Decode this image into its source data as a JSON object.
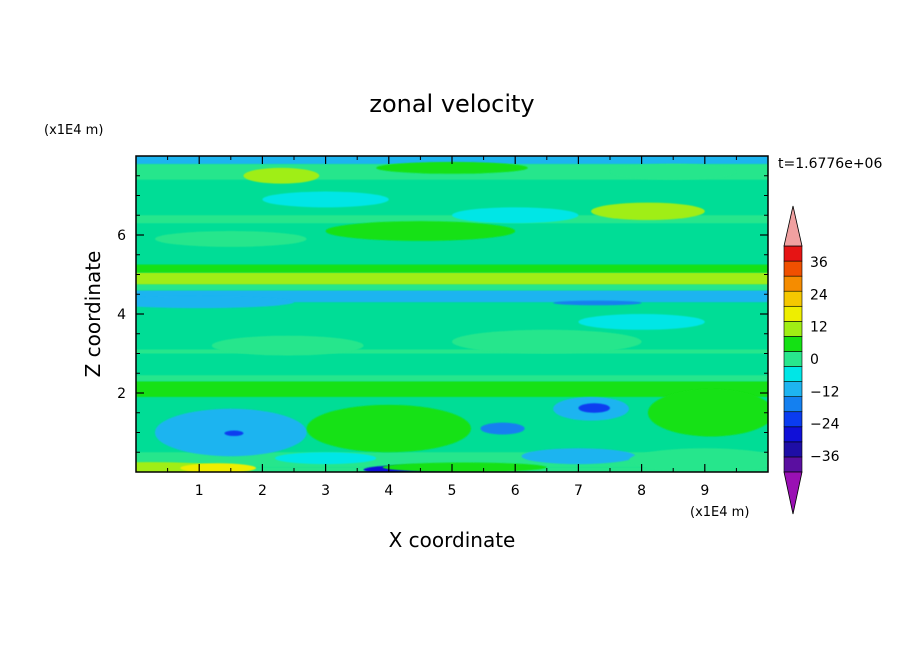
{
  "chart_data": {
    "type": "heatmap",
    "title": "zonal velocity",
    "xlabel": "X coordinate",
    "ylabel": "Z coordinate",
    "x_unit": "(x1E4 m)",
    "y_unit": "(x1E4 m)",
    "time_label": "t=1.6776e+06",
    "xlim": [
      0,
      10
    ],
    "ylim": [
      0,
      8
    ],
    "x_ticks": [
      1,
      2,
      3,
      4,
      5,
      6,
      7,
      8,
      9
    ],
    "x_tick_labels": [
      "1",
      "2",
      "3",
      "4",
      "5",
      "6",
      "7",
      "8",
      "9"
    ],
    "y_ticks": [
      2,
      4,
      6
    ],
    "y_tick_labels": [
      "2",
      "4",
      "6"
    ],
    "colorbar": {
      "levels": [
        -42,
        -36,
        -30,
        -24,
        -18,
        -12,
        -6,
        0,
        6,
        12,
        18,
        24,
        30,
        36,
        42
      ],
      "tick_values": [
        36,
        24,
        12,
        0,
        -12,
        -24,
        -36
      ],
      "tick_labels": [
        "36",
        "24",
        "12",
        "0",
        "−12",
        "−24",
        "−36"
      ],
      "colors": [
        "#5a0fa0",
        "#1e0ea6",
        "#1010d8",
        "#0a3cf0",
        "#1480f0",
        "#1eb4f0",
        "#00e6e6",
        "#28e68c",
        "#14e114",
        "#a0ee14",
        "#eeee00",
        "#f5c800",
        "#f58c00",
        "#f05000",
        "#e61414"
      ],
      "extend_low_color": "#9a10b4",
      "extend_high_color": "#f0a0a0"
    },
    "background_color": "#00dd96",
    "bands": [
      {
        "z": [
          0.0,
          0.12
        ],
        "value": 0
      },
      {
        "z": [
          0.12,
          0.5
        ],
        "value": 3
      },
      {
        "z": [
          1.9,
          2.3
        ],
        "value": 6
      },
      {
        "z": [
          2.3,
          2.45
        ],
        "value": 0
      },
      {
        "z": [
          3.0,
          3.1
        ],
        "value": 5
      },
      {
        "z": [
          4.3,
          4.6
        ],
        "value": -8
      },
      {
        "z": [
          4.6,
          4.75
        ],
        "value": 4
      },
      {
        "z": [
          4.75,
          5.05
        ],
        "value": 13
      },
      {
        "z": [
          5.05,
          5.25
        ],
        "value": 7
      },
      {
        "z": [
          6.3,
          6.5
        ],
        "value": 4
      },
      {
        "z": [
          7.4,
          7.8
        ],
        "value": 5
      },
      {
        "z": [
          7.8,
          8.0
        ],
        "value": -8
      }
    ],
    "blobs": [
      {
        "x": 0.2,
        "z": 0.1,
        "rx": 1.3,
        "rz": 0.15,
        "value": 14
      },
      {
        "x": 1.3,
        "z": 0.1,
        "rx": 0.6,
        "rz": 0.12,
        "value": 19
      },
      {
        "x": 4.4,
        "z": 0.06,
        "rx": 0.8,
        "rz": 0.12,
        "value": -25
      },
      {
        "x": 5.2,
        "z": 0.12,
        "rx": 1.3,
        "rz": 0.12,
        "value": 10
      },
      {
        "x": 1.5,
        "z": 1.0,
        "rx": 1.2,
        "rz": 0.6,
        "value": -7
      },
      {
        "x": 1.55,
        "z": 0.98,
        "rx": 0.15,
        "rz": 0.07,
        "value": -20
      },
      {
        "x": 4.0,
        "z": 1.1,
        "rx": 1.3,
        "rz": 0.6,
        "value": 10
      },
      {
        "x": 5.8,
        "z": 1.1,
        "rx": 0.35,
        "rz": 0.15,
        "value": -17
      },
      {
        "x": 7.2,
        "z": 1.6,
        "rx": 0.6,
        "rz": 0.3,
        "value": -12
      },
      {
        "x": 7.25,
        "z": 1.62,
        "rx": 0.25,
        "rz": 0.12,
        "value": -20
      },
      {
        "x": 9.1,
        "z": 1.5,
        "rx": 1.0,
        "rz": 0.6,
        "value": 9
      },
      {
        "x": 7.0,
        "z": 0.4,
        "rx": 0.9,
        "rz": 0.2,
        "value": -7
      },
      {
        "x": 9.0,
        "z": 0.3,
        "rx": 1.2,
        "rz": 0.3,
        "value": 4
      },
      {
        "x": 3.0,
        "z": 0.35,
        "rx": 0.8,
        "rz": 0.15,
        "value": -6
      },
      {
        "x": 2.4,
        "z": 3.2,
        "rx": 1.2,
        "rz": 0.25,
        "value": 5
      },
      {
        "x": 6.5,
        "z": 3.3,
        "rx": 1.5,
        "rz": 0.3,
        "value": 5
      },
      {
        "x": 8.0,
        "z": 3.8,
        "rx": 1.0,
        "rz": 0.2,
        "value": -6
      },
      {
        "x": 7.3,
        "z": 4.28,
        "rx": 0.7,
        "rz": 0.06,
        "value": -18
      },
      {
        "x": 1.0,
        "z": 4.3,
        "rx": 1.5,
        "rz": 0.15,
        "value": -7
      },
      {
        "x": 2.3,
        "z": 7.5,
        "rx": 0.6,
        "rz": 0.2,
        "value": 12
      },
      {
        "x": 8.1,
        "z": 6.6,
        "rx": 0.9,
        "rz": 0.22,
        "value": 12
      },
      {
        "x": 4.5,
        "z": 6.1,
        "rx": 1.5,
        "rz": 0.25,
        "value": 6
      },
      {
        "x": 1.5,
        "z": 5.9,
        "rx": 1.2,
        "rz": 0.2,
        "value": 4
      },
      {
        "x": 6.0,
        "z": 6.5,
        "rx": 1.0,
        "rz": 0.2,
        "value": -6
      },
      {
        "x": 3.0,
        "z": 6.9,
        "rx": 1.0,
        "rz": 0.2,
        "value": -6
      },
      {
        "x": 5.0,
        "z": 7.7,
        "rx": 1.2,
        "rz": 0.15,
        "value": 10
      },
      {
        "x": 8.5,
        "z": 7.6,
        "rx": 1.0,
        "rz": 0.2,
        "value": 5
      }
    ]
  }
}
